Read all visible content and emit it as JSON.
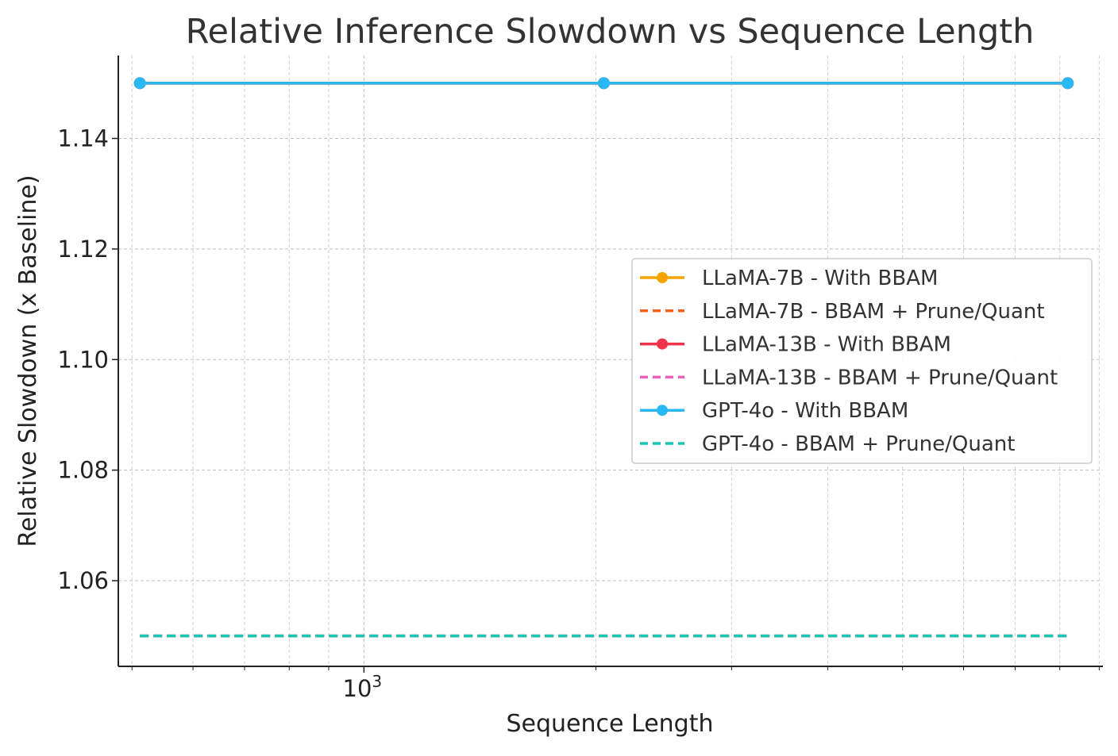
{
  "chart_data": {
    "type": "line",
    "title": "Relative Inference Slowdown vs Sequence Length",
    "xlabel": "Sequence Length",
    "ylabel": "Relative Slowdown (x Baseline)",
    "xscale": "log",
    "x": [
      512,
      2048,
      8192
    ],
    "xlim": [
      480,
      9100
    ],
    "ylim": [
      1.0445,
      1.155
    ],
    "yticks": [
      1.06,
      1.08,
      1.1,
      1.12,
      1.14
    ],
    "ytick_labels": [
      "1.06",
      "1.08",
      "1.10",
      "1.12",
      "1.14"
    ],
    "xtick_major": {
      "value": 1000,
      "base": "10",
      "exponent": "3"
    },
    "xtick_minor": [
      500,
      600,
      700,
      800,
      900,
      2000,
      3000,
      4000,
      5000,
      6000,
      7000,
      8000,
      9000
    ],
    "grid": true,
    "legend_position": "center-right",
    "series": [
      {
        "name": "LLaMA-7B - With BBAM",
        "values": [
          1.15,
          1.15,
          1.15
        ],
        "color": "#f5a300",
        "dashed": false,
        "markers": true
      },
      {
        "name": "LLaMA-7B - BBAM + Prune/Quant",
        "values": [
          1.05,
          1.05,
          1.05
        ],
        "color": "#f0641e",
        "dashed": true,
        "markers": false
      },
      {
        "name": "LLaMA-13B - With BBAM",
        "values": [
          1.15,
          1.15,
          1.15
        ],
        "color": "#f0324b",
        "dashed": false,
        "markers": true
      },
      {
        "name": "LLaMA-13B - BBAM + Prune/Quant",
        "values": [
          1.05,
          1.05,
          1.05
        ],
        "color": "#eb5fbe",
        "dashed": true,
        "markers": false
      },
      {
        "name": "GPT-4o - With BBAM",
        "values": [
          1.15,
          1.15,
          1.15
        ],
        "color": "#28b9f5",
        "dashed": false,
        "markers": true
      },
      {
        "name": "GPT-4o - BBAM + Prune/Quant",
        "values": [
          1.05,
          1.05,
          1.05
        ],
        "color": "#14c8b4",
        "dashed": true,
        "markers": false
      }
    ]
  }
}
